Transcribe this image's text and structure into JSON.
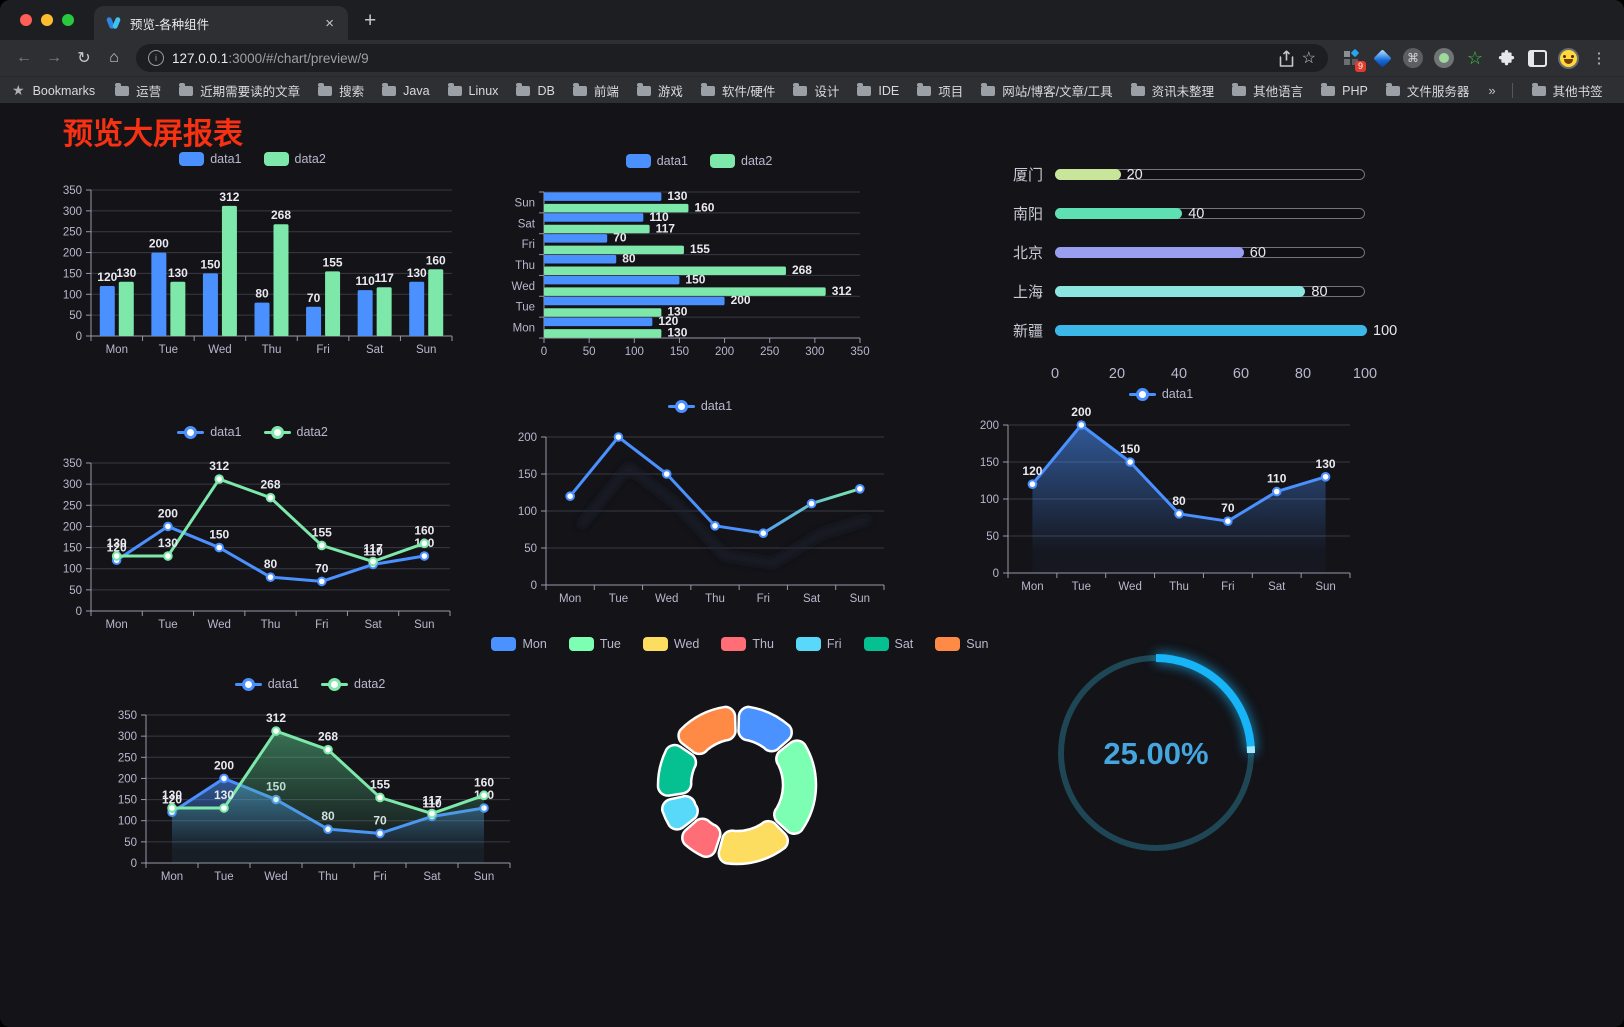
{
  "browser": {
    "tab_title": "预览-各种组件",
    "tab_close": "×",
    "new_tab": "+",
    "back": "←",
    "forward": "→",
    "reload": "↻",
    "home": "⌂",
    "info": "i",
    "url_host": "127.0.0.1",
    "url_path": ":3000/#/chart/preview/9",
    "star": "☆",
    "command": "⌘",
    "green_star": "☆",
    "puzzle": "◲",
    "kebab": "⋮",
    "extension_badge": "9",
    "bookmarks_label": "Bookmarks",
    "bookmarks": [
      "运营",
      "近期需要读的文章",
      "搜索",
      "Java",
      "Linux",
      "DB",
      "前端",
      "游戏",
      "软件/硬件",
      "设计",
      "IDE",
      "项目",
      "网站/博客/文章/工具",
      "资讯未整理",
      "其他语言",
      "PHP",
      "文件服务器"
    ],
    "bookmarks_overflow": "»",
    "other_bookmarks": "其他书签",
    "traffic_lights": [
      "#fe5f57",
      "#febd2f",
      "#29c93f"
    ]
  },
  "page": {
    "title": "预览大屏报表",
    "title_color": "#f73112",
    "background": "#131318"
  },
  "chart_data": [
    {
      "id": "c1",
      "type": "bar",
      "categories": [
        "Mon",
        "Tue",
        "Wed",
        "Thu",
        "Fri",
        "Sat",
        "Sun"
      ],
      "series": [
        {
          "name": "data1",
          "color": "#4a91ff",
          "values": [
            120,
            200,
            150,
            80,
            70,
            110,
            130
          ]
        },
        {
          "name": "data2",
          "color": "#7de8a9",
          "values": [
            130,
            130,
            312,
            268,
            155,
            117,
            160
          ]
        }
      ],
      "ylim": [
        0,
        350
      ],
      "ytick": 50,
      "legend_marker": "rect",
      "labels": true,
      "grid": true
    },
    {
      "id": "c2",
      "type": "hbar",
      "categories": [
        "Sun",
        "Sat",
        "Fri",
        "Thu",
        "Wed",
        "Tue",
        "Mon"
      ],
      "series": [
        {
          "name": "data1",
          "color": "#4a91ff",
          "values": [
            130,
            110,
            70,
            80,
            150,
            200,
            120
          ]
        },
        {
          "name": "data2",
          "color": "#7de8a9",
          "values": [
            160,
            117,
            155,
            268,
            312,
            130,
            130
          ]
        }
      ],
      "xlim": [
        0,
        350
      ],
      "xtick": 50,
      "legend_marker": "rect",
      "labels": true
    },
    {
      "id": "c3",
      "type": "progress",
      "max": 100,
      "rows": [
        {
          "label": "厦门",
          "value": 20,
          "color": "#c9e59b"
        },
        {
          "label": "南阳",
          "value": 40,
          "color": "#5fe0b2"
        },
        {
          "label": "北京",
          "value": 60,
          "color": "#999ef0"
        },
        {
          "label": "上海",
          "value": 80,
          "color": "#8ae6df"
        },
        {
          "label": "新疆",
          "value": 100,
          "color": "#3cb8e8"
        }
      ],
      "ticks": [
        0,
        20,
        40,
        60,
        80,
        100
      ]
    },
    {
      "id": "c4",
      "type": "line",
      "categories": [
        "Mon",
        "Tue",
        "Wed",
        "Thu",
        "Fri",
        "Sat",
        "Sun"
      ],
      "series": [
        {
          "name": "data1",
          "color": "#4a91ff",
          "values": [
            120,
            200,
            150,
            80,
            70,
            110,
            130
          ]
        },
        {
          "name": "data2",
          "color": "#7de8a9",
          "values": [
            130,
            130,
            312,
            268,
            155,
            117,
            160
          ]
        }
      ],
      "ylim": [
        0,
        350
      ],
      "ytick": 50,
      "legend_marker": "line",
      "labels": true
    },
    {
      "id": "c5",
      "type": "line",
      "categories": [
        "Mon",
        "Tue",
        "Wed",
        "Thu",
        "Fri",
        "Sat",
        "Sun"
      ],
      "series": [
        {
          "name": "data1",
          "color": "#4a91ff",
          "values": [
            120,
            200,
            150,
            80,
            70,
            110,
            130
          ]
        }
      ],
      "ylim": [
        0,
        200
      ],
      "ytick": 50,
      "legend_marker": "line",
      "labels": false,
      "gradient_to": "#7de8a9",
      "shadow": true
    },
    {
      "id": "c6",
      "type": "line",
      "categories": [
        "Mon",
        "Tue",
        "Wed",
        "Thu",
        "Fri",
        "Sat",
        "Sun"
      ],
      "series": [
        {
          "name": "data1",
          "color": "#4a91ff",
          "values": [
            120,
            200,
            150,
            80,
            70,
            110,
            130
          ],
          "area": true
        }
      ],
      "ylim": [
        0,
        200
      ],
      "ytick": 50,
      "legend_marker": "line",
      "labels": true
    },
    {
      "id": "c7",
      "type": "line",
      "categories": [
        "Mon",
        "Tue",
        "Wed",
        "Thu",
        "Fri",
        "Sat",
        "Sun"
      ],
      "series": [
        {
          "name": "data1",
          "color": "#4a91ff",
          "values": [
            120,
            200,
            150,
            80,
            70,
            110,
            130
          ],
          "area": true
        },
        {
          "name": "data2",
          "color": "#7de8a9",
          "values": [
            130,
            130,
            312,
            268,
            155,
            117,
            160
          ],
          "area": true
        }
      ],
      "ylim": [
        0,
        350
      ],
      "ytick": 50,
      "legend_marker": "line",
      "labels": true
    },
    {
      "id": "c8",
      "type": "donut",
      "items": [
        {
          "label": "Mon",
          "value": 120,
          "color": "#4992ff"
        },
        {
          "label": "Tue",
          "value": 200,
          "color": "#7cffb2"
        },
        {
          "label": "Wed",
          "value": 150,
          "color": "#fddd60"
        },
        {
          "label": "Thu",
          "value": 80,
          "color": "#ff6e76"
        },
        {
          "label": "Fri",
          "value": 70,
          "color": "#58d9f9"
        },
        {
          "label": "Sat",
          "value": 110,
          "color": "#05c091"
        },
        {
          "label": "Sun",
          "value": 130,
          "color": "#ff8a45"
        }
      ]
    },
    {
      "id": "c9",
      "type": "gauge",
      "value": 25,
      "label": "25.00%",
      "arc_color": "#17b4f7",
      "tip_color": "#a5e6ff",
      "track_color": "#1e4654",
      "text_color": "#45a5de"
    }
  ]
}
